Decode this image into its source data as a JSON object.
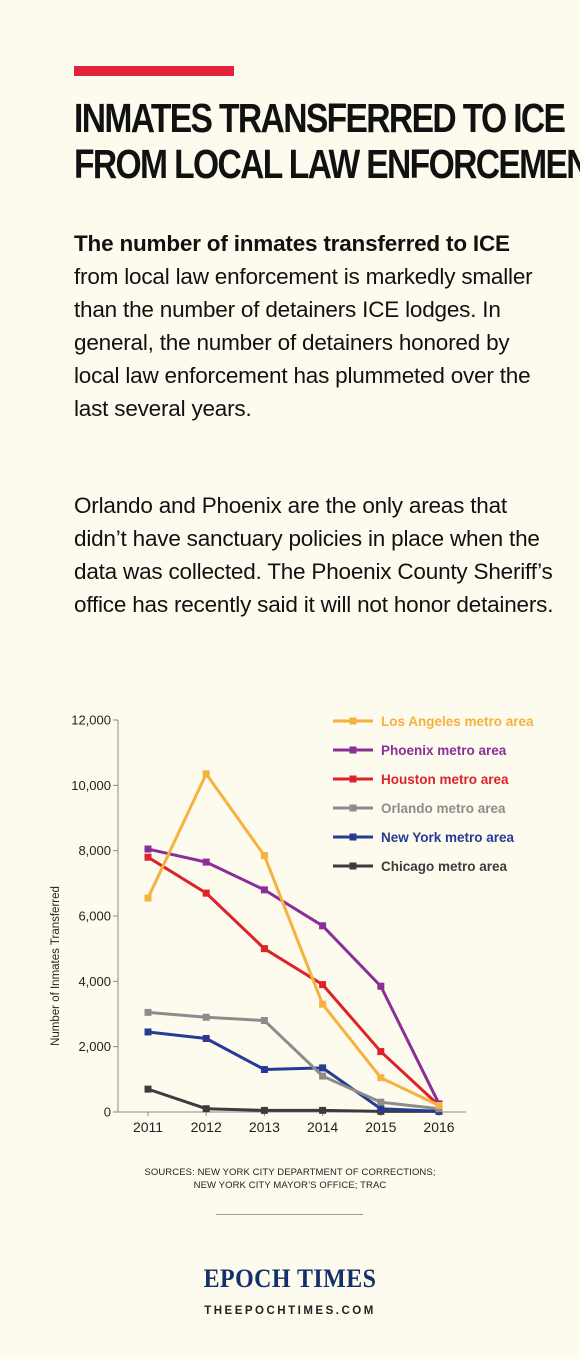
{
  "colors": {
    "accent_bar": "#e3223b",
    "brand": "#14306b",
    "axis": "#8a8a8a"
  },
  "headline": {
    "line1": "INMATES TRANSFERRED TO ICE",
    "line2": "FROM LOCAL LAW ENFORCEMENT"
  },
  "intro": {
    "lead_bold": "The number of inmates transferred to ICE",
    "lead_rest": " from local law enforcement is markedly smaller than the number of detainers ICE lodges. In general, the number of detainers honored by local law enforcement has plummeted over the last several years.",
    "second": "Orlando and Phoenix are the only areas that didn’t have sanctuary policies in place when the data was collected. The Phoenix County Sheriff’s office has recently said it will not honor detainers."
  },
  "chart_data": {
    "type": "line",
    "x": [
      2011,
      2012,
      2013,
      2014,
      2015,
      2016
    ],
    "ylabel": "Number of Inmates Transferred",
    "ylim": [
      0,
      12000
    ],
    "yticks": [
      0,
      2000,
      4000,
      6000,
      8000,
      10000,
      12000
    ],
    "ytick_labels": [
      "0",
      "2,000",
      "4,000",
      "6,000",
      "8,000",
      "10,000",
      "12,000"
    ],
    "legend_placement": "top-right",
    "grid": false,
    "series": [
      {
        "name": "Los Angeles metro area",
        "color": "#f6b13e",
        "values": [
          6550,
          10350,
          7850,
          3300,
          1050,
          200
        ]
      },
      {
        "name": "Phoenix metro area",
        "color": "#8a2f97",
        "values": [
          8050,
          7650,
          6800,
          5700,
          3850,
          250
        ]
      },
      {
        "name": "Houston metro area",
        "color": "#dd2229",
        "values": [
          7800,
          6700,
          5000,
          3900,
          1850,
          200
        ]
      },
      {
        "name": "Orlando metro area",
        "color": "#8c8c8c",
        "values": [
          3050,
          2900,
          2800,
          1100,
          300,
          100
        ]
      },
      {
        "name": "New York metro area",
        "color": "#263b93",
        "values": [
          2450,
          2250,
          1300,
          1350,
          100,
          20
        ]
      },
      {
        "name": "Chicago metro area",
        "color": "#3c3c3c",
        "values": [
          700,
          100,
          50,
          50,
          20,
          20
        ]
      }
    ]
  },
  "sources": {
    "line1": "SOURCES: NEW YORK CITY DEPARTMENT OF CORRECTIONS;",
    "line2": "NEW YORK CITY MAYOR’S OFFICE; TRAC"
  },
  "brand": {
    "name": "EPOCH TIMES",
    "url": "THEEPOCHTIMES.COM"
  }
}
